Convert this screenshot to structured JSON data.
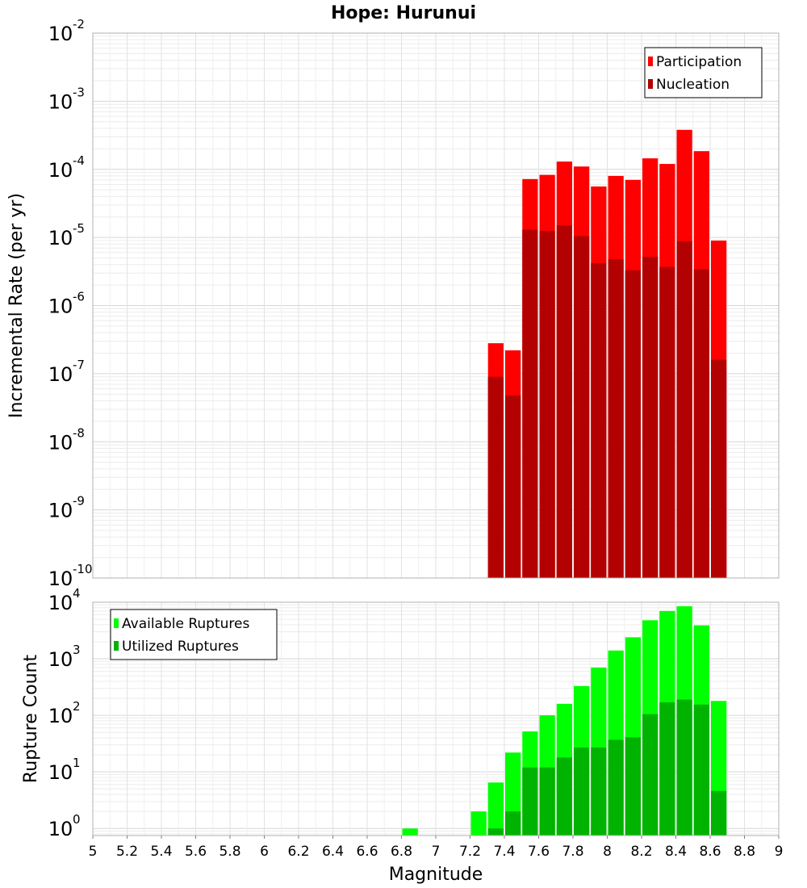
{
  "title": "Hope: Hurunui",
  "chart_data": [
    {
      "type": "bar",
      "subtype": "stacked-overlay",
      "ylabel": "Incremental Rate (per yr)",
      "xlabel": "",
      "yscale": "log",
      "ylim": [
        1e-10,
        0.01
      ],
      "xlim": [
        5,
        9
      ],
      "grid": true,
      "legend_position": "top-right",
      "bin_width": 0.1,
      "x": [
        7.35,
        7.45,
        7.55,
        7.65,
        7.75,
        7.85,
        7.95,
        8.05,
        8.15,
        8.25,
        8.35,
        8.45,
        8.55,
        8.65
      ],
      "series": [
        {
          "name": "Participation",
          "color": "#ff0000",
          "values": [
            2.8e-07,
            2.2e-07,
            7.2e-05,
            8.3e-05,
            0.00013,
            0.00011,
            5.6e-05,
            8e-05,
            7e-05,
            0.000145,
            0.00012,
            0.00038,
            0.000185,
            9e-06
          ]
        },
        {
          "name": "Nucleation",
          "color": "#b30000",
          "values": [
            9e-08,
            4.8e-08,
            1.3e-05,
            1.25e-05,
            1.5e-05,
            1.05e-05,
            4.2e-06,
            4.8e-06,
            3.3e-06,
            5.2e-06,
            3.7e-06,
            8.8e-06,
            3.4e-06,
            1.6e-07
          ]
        }
      ]
    },
    {
      "type": "bar",
      "subtype": "stacked-overlay",
      "ylabel": "Rupture Count",
      "xlabel": "Magnitude",
      "yscale": "log",
      "ylim": [
        0.75,
        10000
      ],
      "xlim": [
        5,
        9
      ],
      "grid": true,
      "legend_position": "top-left",
      "bin_width": 0.1,
      "x": [
        6.85,
        7.25,
        7.35,
        7.45,
        7.55,
        7.65,
        7.75,
        7.85,
        7.95,
        8.05,
        8.15,
        8.25,
        8.35,
        8.45,
        8.55,
        8.65
      ],
      "series": [
        {
          "name": "Available Ruptures",
          "color": "#00ff00",
          "values": [
            1,
            2,
            6.5,
            22,
            52,
            100,
            160,
            330,
            700,
            1400,
            2400,
            4800,
            7000,
            8500,
            3900,
            180
          ]
        },
        {
          "name": "Utilized Ruptures",
          "color": "#00b300",
          "values": [
            0,
            0,
            1,
            2,
            12,
            12,
            18,
            27,
            27,
            37,
            41,
            105,
            170,
            190,
            155,
            4.6
          ]
        }
      ],
      "xticks": [
        "5",
        "5.2",
        "5.4",
        "5.6",
        "5.8",
        "6",
        "6.2",
        "6.4",
        "6.6",
        "6.8",
        "7",
        "7.2",
        "7.4",
        "7.6",
        "7.8",
        "8",
        "8.2",
        "8.4",
        "8.6",
        "8.8",
        "9"
      ]
    }
  ],
  "top_yticks": [
    {
      "base": "10",
      "exp": "-10"
    },
    {
      "base": "10",
      "exp": "-9"
    },
    {
      "base": "10",
      "exp": "-8"
    },
    {
      "base": "10",
      "exp": "-7"
    },
    {
      "base": "10",
      "exp": "-6"
    },
    {
      "base": "10",
      "exp": "-5"
    },
    {
      "base": "10",
      "exp": "-4"
    },
    {
      "base": "10",
      "exp": "-3"
    },
    {
      "base": "10",
      "exp": "-2"
    }
  ],
  "bottom_yticks": [
    {
      "base": "10",
      "exp": "0"
    },
    {
      "base": "10",
      "exp": "1"
    },
    {
      "base": "10",
      "exp": "2"
    },
    {
      "base": "10",
      "exp": "3"
    },
    {
      "base": "10",
      "exp": "4"
    }
  ]
}
